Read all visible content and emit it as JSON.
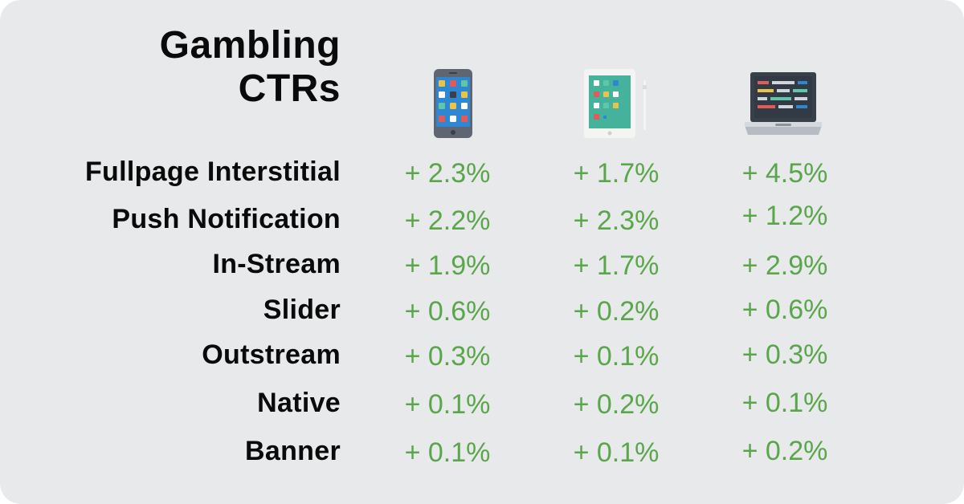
{
  "chart_data": {
    "type": "table",
    "title": [
      "Gambling",
      "CTRs"
    ],
    "columns": [
      {
        "device": "smartphone"
      },
      {
        "device": "tablet"
      },
      {
        "device": "laptop"
      }
    ],
    "rows": [
      {
        "label": "Fullpage Interstitial",
        "values": [
          "+ 2.3%",
          "+ 1.7%",
          "+ 4.5%"
        ]
      },
      {
        "label": "Push Notification",
        "values": [
          "+ 2.2%",
          "+ 2.3%",
          "+ 1.2%"
        ]
      },
      {
        "label": "In-Stream",
        "values": [
          "+ 1.9%",
          "+ 1.7%",
          "+ 2.9%"
        ]
      },
      {
        "label": "Slider",
        "values": [
          "+ 0.6%",
          "+ 0.2%",
          "+ 0.6%"
        ]
      },
      {
        "label": "Outstream",
        "values": [
          "+ 0.3%",
          "+ 0.1%",
          "+ 0.3%"
        ]
      },
      {
        "label": "Native",
        "values": [
          "+ 0.1%",
          "+ 0.2%",
          "+ 0.1%"
        ]
      },
      {
        "label": "Banner",
        "values": [
          "+ 0.1%",
          "+ 0.1%",
          "+ 0.2%"
        ]
      }
    ]
  },
  "colors": {
    "background": "#e8e9eb",
    "label": "#0a0a0a",
    "value": "#5aa64a"
  },
  "icons": [
    "smartphone-icon",
    "tablet-icon",
    "laptop-icon"
  ]
}
